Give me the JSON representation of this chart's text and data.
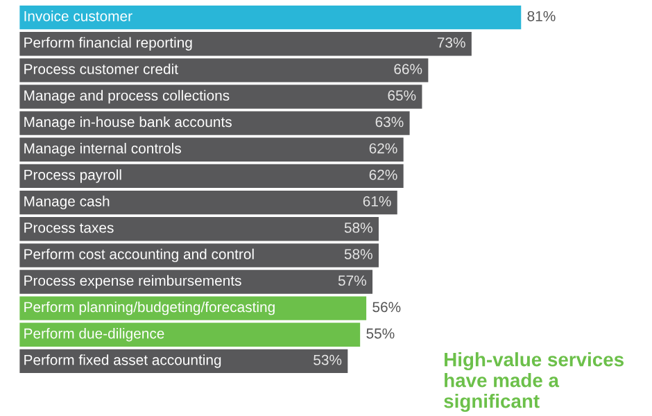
{
  "chart_data": {
    "type": "bar",
    "orientation": "horizontal",
    "categories": [
      "Invoice customer",
      "Perform financial reporting",
      "Process customer credit",
      "Manage and process collections",
      "Manage in-house bank accounts",
      "Manage internal controls",
      "Process payroll",
      "Manage cash",
      "Process taxes",
      "Perform cost accounting and control",
      "Process expense reimbursements",
      "Perform planning/budgeting/forecasting",
      "Perform due-diligence",
      "Perform fixed asset accounting"
    ],
    "values": [
      81,
      73,
      66,
      65,
      63,
      62,
      62,
      61,
      58,
      58,
      57,
      56,
      55,
      53
    ],
    "colors": [
      "#29b6d8",
      "#58585a",
      "#58585a",
      "#58585a",
      "#58585a",
      "#58585a",
      "#58585a",
      "#58585a",
      "#58585a",
      "#58585a",
      "#58585a",
      "#6cc04a",
      "#6cc04a",
      "#58585a"
    ],
    "value_labels": [
      "81%",
      "73%",
      "66%",
      "65%",
      "63%",
      "62%",
      "62%",
      "61%",
      "58%",
      "58%",
      "57%",
      "56%",
      "55%",
      "53%"
    ],
    "annotations": [
      "High-value services have made a significant"
    ]
  }
}
